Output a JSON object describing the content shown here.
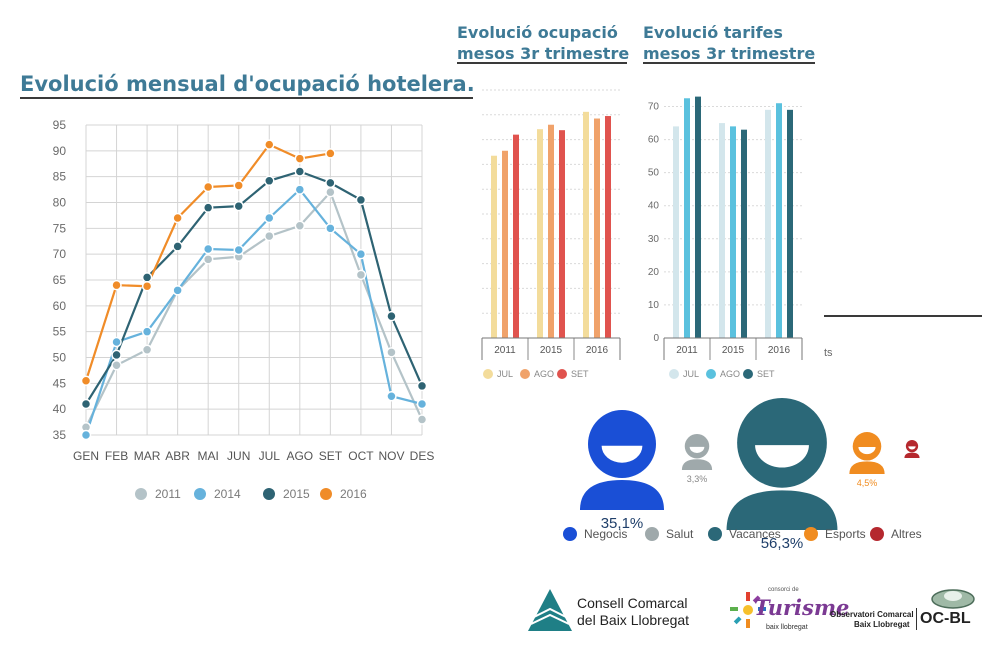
{
  "titles": {
    "main": "Evolució mensual d'ocupació hotelera.",
    "occupancy": [
      "Evolució ocupació",
      "mesos 3r trimestre"
    ],
    "tariffs": [
      "Evolució tarifes",
      "mesos 3r trimestre"
    ]
  },
  "chart_data": [
    {
      "type": "line",
      "title": "Evolució mensual d'ocupació hotelera.",
      "xlabel": "",
      "ylabel": "",
      "ylim": [
        35,
        95
      ],
      "yticks": [
        35,
        40,
        45,
        50,
        55,
        60,
        65,
        70,
        75,
        80,
        85,
        90,
        95
      ],
      "grid": true,
      "legend_position": "bottom",
      "categories": [
        "GEN",
        "FEB",
        "MAR",
        "ABR",
        "MAI",
        "JUN",
        "JUL",
        "AGO",
        "SET",
        "OCT",
        "NOV",
        "DES"
      ],
      "series": [
        {
          "name": "2011",
          "color": "#b4c3c8",
          "values": [
            36.5,
            48.5,
            51.5,
            63,
            69,
            69.5,
            73.5,
            75.5,
            82,
            66,
            51,
            38
          ]
        },
        {
          "name": "2014",
          "color": "#66b2dc",
          "values": [
            35,
            53,
            55,
            63,
            71,
            70.8,
            77,
            82.5,
            75,
            70,
            42.5,
            41
          ]
        },
        {
          "name": "2015",
          "color": "#2e6373",
          "values": [
            41,
            50.5,
            65.5,
            71.5,
            79,
            79.3,
            84.2,
            86,
            83.8,
            80.5,
            58,
            44.5
          ]
        },
        {
          "name": "2016",
          "color": "#f08c28",
          "values": [
            45.5,
            64,
            63.8,
            77,
            83,
            83.3,
            91.2,
            88.5,
            89.5,
            null,
            null,
            null
          ]
        }
      ]
    },
    {
      "type": "bar",
      "title": "Evolució ocupació mesos 3r trimestre",
      "categories": [
        "2011",
        "2015",
        "2016"
      ],
      "ylim": [
        0,
        100
      ],
      "axis_labels_shown": false,
      "grid": true,
      "legend_position": "bottom",
      "series": [
        {
          "name": "JUL",
          "color": "#f3dc9b",
          "values": [
            73.5,
            84.2,
            91.2
          ]
        },
        {
          "name": "AGO",
          "color": "#f0a26a",
          "values": [
            75.5,
            86,
            88.5
          ]
        },
        {
          "name": "SET",
          "color": "#e0534e",
          "values": [
            82,
            83.8,
            89.5
          ]
        }
      ]
    },
    {
      "type": "bar",
      "title": "Evolució tarifes mesos 3r trimestre",
      "categories": [
        "2011",
        "2015",
        "2016"
      ],
      "ylim": [
        0,
        75
      ],
      "yticks": [
        0,
        10,
        20,
        30,
        40,
        50,
        60,
        70
      ],
      "grid": true,
      "legend_position": "bottom",
      "series": [
        {
          "name": "JUL",
          "color": "#d3e6ec",
          "values": [
            64,
            65,
            69
          ]
        },
        {
          "name": "AGO",
          "color": "#5ac1de",
          "values": [
            72.5,
            64,
            71
          ]
        },
        {
          "name": "SET",
          "color": "#2b6878",
          "values": [
            73,
            63,
            69
          ]
        }
      ]
    },
    {
      "type": "pictogram",
      "title": "",
      "legend_position": "bottom",
      "categories": [
        {
          "name": "Negocis",
          "color": "#1a4fd6",
          "value": 35.1,
          "label": "35,1%"
        },
        {
          "name": "Salut",
          "color": "#9fa9ab",
          "value": 3.3,
          "label": "3,3%"
        },
        {
          "name": "Vacances",
          "color": "#2b6878",
          "value": 56.3,
          "label": "56,3%"
        },
        {
          "name": "Esports",
          "color": "#f08c20",
          "value": 4.5,
          "label": "4,5%"
        },
        {
          "name": "Altres",
          "color": "#b5282e",
          "value": 0.8,
          "label": ""
        }
      ]
    }
  ],
  "fragment_text": "ts",
  "logos": {
    "consell": [
      "Consell Comarcal",
      "del Baix Llobregat"
    ],
    "turisme": {
      "top": "consorci de",
      "word": "Turisme",
      "sub": "baix llobregat"
    },
    "observatori": {
      "lines": [
        "Observatori Comarcal",
        "Baix Llobregat"
      ],
      "acronym": "OC-BL"
    }
  }
}
